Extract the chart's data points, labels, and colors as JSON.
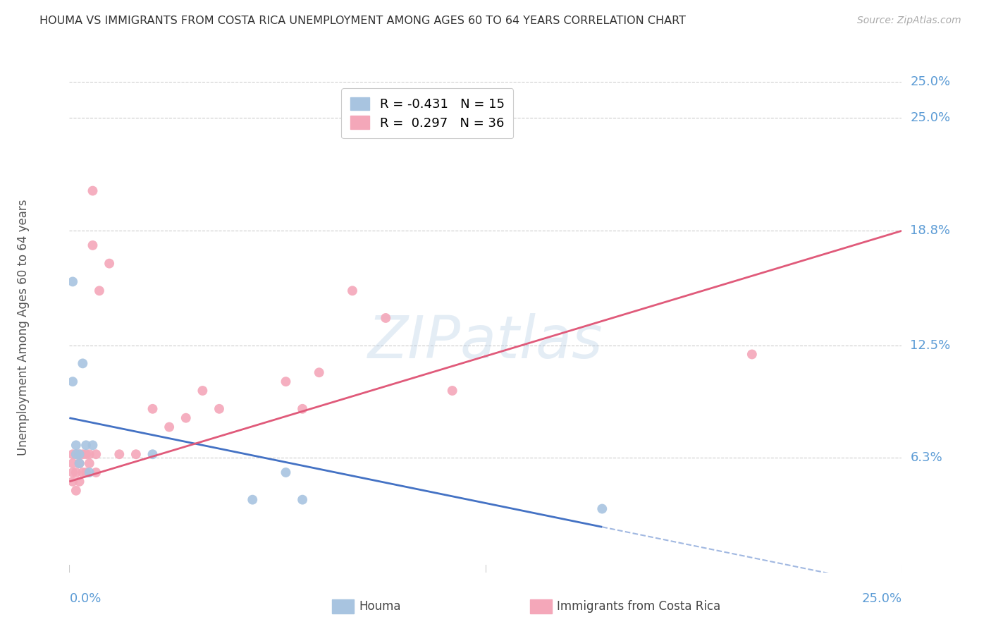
{
  "title": "HOUMA VS IMMIGRANTS FROM COSTA RICA UNEMPLOYMENT AMONG AGES 60 TO 64 YEARS CORRELATION CHART",
  "source": "Source: ZipAtlas.com",
  "ylabel": "Unemployment Among Ages 60 to 64 years",
  "ytick_values": [
    0.063,
    0.125,
    0.188,
    0.25
  ],
  "ytick_labels": [
    "6.3%",
    "12.5%",
    "18.8%",
    "25.0%"
  ],
  "xmin": 0.0,
  "xmax": 0.25,
  "ymin": 0.0,
  "ymax": 0.27,
  "houma_color": "#a8c4e0",
  "houma_line_color": "#4472c4",
  "costa_rica_color": "#f4a7b9",
  "costa_rica_line_color": "#e05a7a",
  "houma_R": -0.431,
  "houma_N": 15,
  "costa_rica_R": 0.297,
  "costa_rica_N": 36,
  "legend_label_houma": "Houma",
  "legend_label_cr": "Immigrants from Costa Rica",
  "watermark": "ZIPatlas",
  "houma_x": [
    0.001,
    0.001,
    0.002,
    0.002,
    0.003,
    0.003,
    0.004,
    0.005,
    0.006,
    0.007,
    0.025,
    0.055,
    0.065,
    0.07,
    0.16
  ],
  "houma_y": [
    0.16,
    0.105,
    0.07,
    0.065,
    0.065,
    0.06,
    0.115,
    0.07,
    0.055,
    0.07,
    0.065,
    0.04,
    0.055,
    0.04,
    0.035
  ],
  "cr_x": [
    0.001,
    0.001,
    0.001,
    0.001,
    0.002,
    0.002,
    0.002,
    0.003,
    0.003,
    0.003,
    0.004,
    0.004,
    0.005,
    0.005,
    0.006,
    0.006,
    0.007,
    0.007,
    0.008,
    0.008,
    0.009,
    0.012,
    0.015,
    0.02,
    0.025,
    0.03,
    0.035,
    0.04,
    0.045,
    0.065,
    0.07,
    0.075,
    0.085,
    0.095,
    0.115,
    0.205
  ],
  "cr_y": [
    0.05,
    0.055,
    0.06,
    0.065,
    0.045,
    0.055,
    0.065,
    0.05,
    0.06,
    0.065,
    0.055,
    0.065,
    0.055,
    0.065,
    0.06,
    0.065,
    0.18,
    0.21,
    0.055,
    0.065,
    0.155,
    0.17,
    0.065,
    0.065,
    0.09,
    0.08,
    0.085,
    0.1,
    0.09,
    0.105,
    0.09,
    0.11,
    0.155,
    0.14,
    0.1,
    0.12
  ],
  "houma_line_x0": 0.0,
  "houma_line_x1": 0.16,
  "houma_line_y0": 0.085,
  "houma_line_y1": 0.025,
  "houma_line_ext_x1": 0.25,
  "cr_line_x0": 0.0,
  "cr_line_x1": 0.25,
  "cr_line_y0": 0.05,
  "cr_line_y1": 0.188,
  "grid_color": "#cccccc",
  "background_color": "#ffffff",
  "title_color": "#333333",
  "axis_label_color": "#5b9bd5",
  "marker_size": 100
}
